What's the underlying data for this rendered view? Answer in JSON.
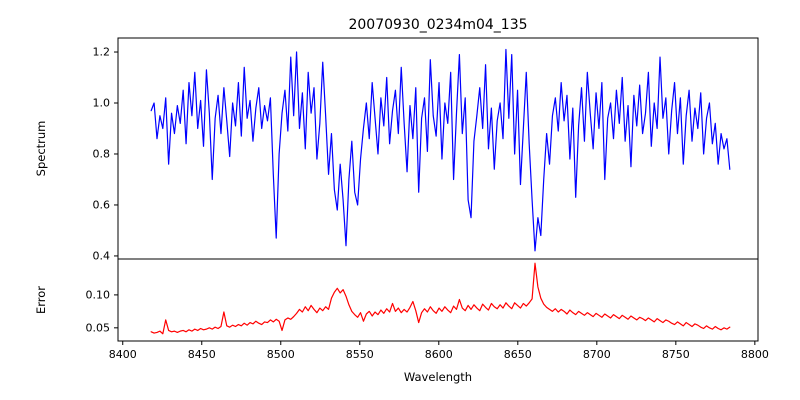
{
  "figure": {
    "title": "20070930_0234m04_135",
    "background": "#ffffff",
    "frame_color": "#000000"
  },
  "chart_data": [
    {
      "type": "line",
      "title": "20070930_0234m04_135",
      "ylabel": "Spectrum",
      "xlim": [
        8397,
        8802
      ],
      "ylim": [
        0.388,
        1.255
      ],
      "ytick_values": [
        0.4,
        0.6,
        0.8,
        1.0,
        1.2
      ],
      "ytick_labels": [
        "0.4",
        "0.6",
        "0.8",
        "1.0",
        "1.2"
      ],
      "grid": false,
      "legend": "none",
      "series": [
        {
          "name": "spectrum",
          "color": "#0000ff",
          "x_start": 8418,
          "x_step": 1.84,
          "values": [
            0.97,
            1.0,
            0.86,
            0.95,
            0.9,
            1.02,
            0.76,
            0.96,
            0.88,
            0.99,
            0.92,
            1.05,
            0.84,
            1.08,
            0.95,
            1.12,
            0.9,
            1.01,
            0.83,
            1.13,
            0.96,
            0.7,
            0.94,
            1.03,
            0.88,
            1.06,
            0.93,
            0.79,
            1.0,
            0.91,
            1.08,
            0.87,
            1.14,
            0.94,
            1.01,
            0.85,
            0.98,
            1.06,
            0.9,
            0.99,
            0.93,
            1.02,
            0.72,
            0.47,
            0.8,
            0.96,
            1.05,
            0.89,
            1.18,
            0.95,
            1.2,
            0.9,
            1.04,
            0.82,
            1.12,
            0.96,
            1.06,
            0.78,
            0.92,
            1.16,
            0.95,
            0.72,
            0.88,
            0.66,
            0.58,
            0.76,
            0.62,
            0.44,
            0.7,
            0.85,
            0.65,
            0.6,
            0.78,
            0.9,
            1.0,
            0.86,
            1.08,
            0.94,
            0.8,
            1.02,
            0.91,
            1.1,
            0.84,
            0.97,
            1.05,
            0.88,
            1.14,
            0.92,
            0.73,
            0.99,
            0.86,
            1.06,
            0.65,
            0.94,
            1.02,
            0.81,
            1.17,
            0.95,
            0.87,
            1.08,
            0.78,
            1.0,
            0.92,
            1.12,
            0.7,
            0.96,
            1.19,
            0.88,
            1.02,
            0.62,
            0.55,
            0.85,
            0.95,
            1.06,
            0.9,
            1.15,
            0.82,
            0.98,
            0.74,
            0.93,
            1.0,
            0.86,
            1.21,
            0.94,
            1.19,
            0.8,
            1.05,
            0.68,
            0.9,
            1.12,
            0.84,
            0.62,
            0.42,
            0.55,
            0.48,
            0.7,
            0.88,
            0.76,
            0.95,
            1.02,
            0.89,
            1.08,
            0.93,
            1.03,
            0.78,
            0.98,
            0.63,
            0.91,
            1.06,
            0.85,
            1.12,
            0.96,
            0.82,
            1.04,
            0.9,
            1.08,
            0.7,
            0.94,
            1.0,
            0.86,
            1.05,
            0.92,
            1.1,
            0.85,
            0.99,
            0.75,
            1.03,
            0.91,
            1.07,
            0.88,
            0.96,
            1.12,
            0.83,
            1.0,
            0.9,
            1.18,
            0.94,
            1.02,
            0.8,
            0.97,
            1.08,
            0.88,
            1.02,
            0.76,
            0.95,
            1.05,
            0.85,
            0.98,
            0.9,
            1.04,
            0.8,
            0.94,
            1.0,
            0.84,
            0.92,
            0.76,
            0.88,
            0.82,
            0.86,
            0.74
          ]
        }
      ]
    },
    {
      "type": "line",
      "ylabel": "Error",
      "xlabel": "Wavelength",
      "xlim": [
        8397,
        8802
      ],
      "ylim": [
        0.03,
        0.1545
      ],
      "ytick_values": [
        0.05,
        0.1
      ],
      "ytick_labels": [
        "0.05",
        "0.10"
      ],
      "xtick_values": [
        8400,
        8450,
        8500,
        8550,
        8600,
        8650,
        8700,
        8750,
        8800
      ],
      "xtick_labels": [
        "8400",
        "8450",
        "8500",
        "8550",
        "8600",
        "8650",
        "8700",
        "8750",
        "8800"
      ],
      "grid": false,
      "legend": "none",
      "series": [
        {
          "name": "error",
          "color": "#ff0000",
          "x_start": 8418,
          "x_step": 1.84,
          "values": [
            0.044,
            0.042,
            0.043,
            0.045,
            0.041,
            0.062,
            0.046,
            0.044,
            0.045,
            0.043,
            0.045,
            0.046,
            0.044,
            0.047,
            0.045,
            0.048,
            0.046,
            0.049,
            0.047,
            0.048,
            0.05,
            0.048,
            0.051,
            0.049,
            0.052,
            0.074,
            0.053,
            0.051,
            0.054,
            0.052,
            0.055,
            0.053,
            0.057,
            0.054,
            0.058,
            0.056,
            0.06,
            0.057,
            0.055,
            0.059,
            0.058,
            0.062,
            0.059,
            0.063,
            0.06,
            0.046,
            0.062,
            0.065,
            0.063,
            0.067,
            0.072,
            0.078,
            0.074,
            0.082,
            0.076,
            0.084,
            0.078,
            0.073,
            0.08,
            0.076,
            0.082,
            0.078,
            0.095,
            0.104,
            0.11,
            0.103,
            0.108,
            0.098,
            0.085,
            0.075,
            0.07,
            0.066,
            0.073,
            0.06,
            0.071,
            0.075,
            0.068,
            0.074,
            0.07,
            0.077,
            0.072,
            0.079,
            0.074,
            0.087,
            0.075,
            0.08,
            0.073,
            0.078,
            0.074,
            0.081,
            0.09,
            0.076,
            0.058,
            0.073,
            0.079,
            0.074,
            0.082,
            0.076,
            0.072,
            0.08,
            0.075,
            0.082,
            0.077,
            0.073,
            0.083,
            0.078,
            0.093,
            0.08,
            0.076,
            0.084,
            0.078,
            0.085,
            0.08,
            0.076,
            0.086,
            0.081,
            0.077,
            0.087,
            0.082,
            0.079,
            0.085,
            0.08,
            0.088,
            0.083,
            0.079,
            0.088,
            0.084,
            0.08,
            0.087,
            0.083,
            0.088,
            0.094,
            0.148,
            0.112,
            0.095,
            0.086,
            0.081,
            0.078,
            0.075,
            0.079,
            0.074,
            0.078,
            0.075,
            0.071,
            0.077,
            0.073,
            0.07,
            0.075,
            0.072,
            0.069,
            0.073,
            0.07,
            0.067,
            0.072,
            0.069,
            0.066,
            0.071,
            0.068,
            0.065,
            0.07,
            0.067,
            0.064,
            0.069,
            0.066,
            0.063,
            0.068,
            0.065,
            0.062,
            0.066,
            0.064,
            0.061,
            0.065,
            0.062,
            0.059,
            0.064,
            0.061,
            0.058,
            0.062,
            0.06,
            0.057,
            0.055,
            0.059,
            0.056,
            0.053,
            0.058,
            0.055,
            0.052,
            0.056,
            0.054,
            0.051,
            0.049,
            0.053,
            0.05,
            0.048,
            0.052,
            0.049,
            0.047,
            0.05,
            0.048,
            0.051
          ]
        }
      ]
    }
  ]
}
